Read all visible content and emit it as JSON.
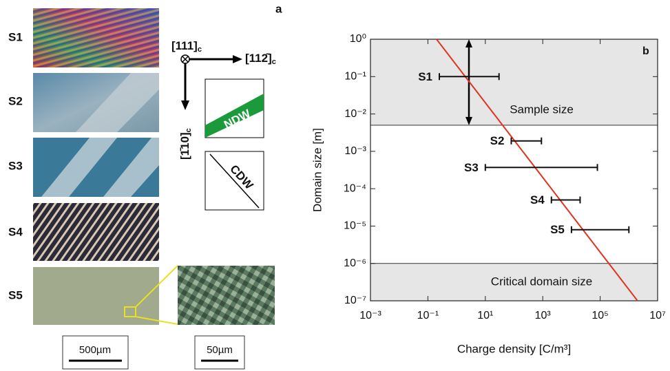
{
  "panel_a": {
    "label": "a",
    "samples": [
      "S1",
      "S2",
      "S3",
      "S4",
      "S5"
    ],
    "axis_111": "[111]",
    "axis_112": "[112̄]",
    "axis_110": "[1̄10]",
    "axis_sub": "c",
    "ndw": "NDW",
    "cdw": "CDW",
    "scale_large": "500µm",
    "scale_small": "50µm"
  },
  "chart_data": {
    "type": "errorbar",
    "panel_label": "b",
    "xlabel": "Charge density [C/m³]",
    "ylabel": "Domain size [m]",
    "xscale": "log",
    "yscale": "log",
    "xlim": [
      0.001,
      10000000
    ],
    "ylim": [
      1e-07,
      1
    ],
    "xticks": [
      {
        "value": 0.001,
        "label": "10⁻³"
      },
      {
        "value": 0.1,
        "label": "10⁻¹"
      },
      {
        "value": 10,
        "label": "10¹"
      },
      {
        "value": 1000,
        "label": "10³"
      },
      {
        "value": 100000,
        "label": "10⁵"
      },
      {
        "value": 10000000,
        "label": "10⁷"
      }
    ],
    "yticks": [
      {
        "value": 1,
        "label": "10⁰"
      },
      {
        "value": 0.1,
        "label": "10⁻¹"
      },
      {
        "value": 0.01,
        "label": "10⁻²"
      },
      {
        "value": 0.001,
        "label": "10⁻³"
      },
      {
        "value": 0.0001,
        "label": "10⁻⁴"
      },
      {
        "value": 1e-05,
        "label": "10⁻⁵"
      },
      {
        "value": 1e-06,
        "label": "10⁻⁶"
      },
      {
        "value": 1e-07,
        "label": "10⁻⁷"
      }
    ],
    "labels": [
      "S1",
      "S2",
      "S3",
      "S4",
      "S5"
    ],
    "values": [
      0.1,
      0.0019,
      0.00037,
      5e-05,
      8e-06
    ],
    "x_min": [
      0.25,
      80,
      10,
      2000,
      10000
    ],
    "x_max": [
      30,
      900,
      80000,
      20000,
      1000000
    ],
    "color": "#111111",
    "line": {
      "x": [
        0.2,
        2000000
      ],
      "y": [
        1,
        1e-07
      ],
      "color": "#e0321e"
    },
    "bands": [
      {
        "label": "Sample size",
        "ylim": [
          0.005,
          1
        ]
      },
      {
        "label": "Critical domain size",
        "ylim": [
          1e-07,
          1e-06
        ]
      }
    ],
    "band_color": "#e6e6e6"
  }
}
